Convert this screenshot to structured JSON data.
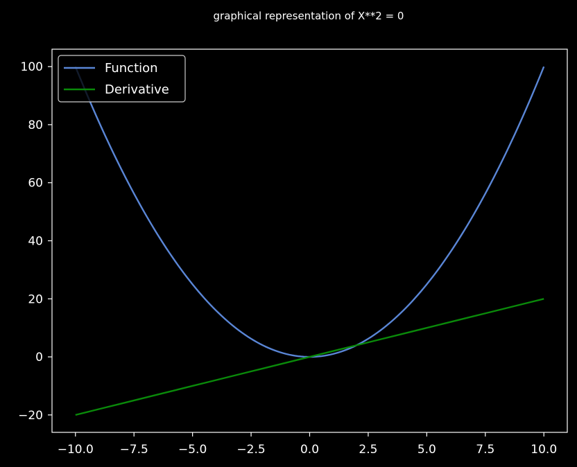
{
  "chart_data": {
    "type": "line",
    "title": "graphical representation of X**2 = 0",
    "xlabel": "",
    "ylabel": "",
    "xlim": [
      -11,
      11
    ],
    "ylim": [
      -26,
      106
    ],
    "x_ticks": [
      -10.0,
      -7.5,
      -5.0,
      -2.5,
      0.0,
      2.5,
      5.0,
      7.5,
      10.0
    ],
    "x_tick_labels": [
      "−10.0",
      "−7.5",
      "−5.0",
      "−2.5",
      "0.0",
      "2.5",
      "5.0",
      "7.5",
      "10.0"
    ],
    "y_ticks": [
      -20,
      0,
      20,
      40,
      60,
      80,
      100
    ],
    "y_tick_labels": [
      "−20",
      "0",
      "20",
      "40",
      "60",
      "80",
      "100"
    ],
    "grid": false,
    "legend_position": "top-left",
    "series": [
      {
        "name": "Function",
        "color": "#5a86d6",
        "x": [
          -10,
          -9,
          -8,
          -7,
          -6,
          -5,
          -4,
          -3,
          -2,
          -1,
          0,
          1,
          2,
          3,
          4,
          5,
          6,
          7,
          8,
          9,
          10
        ],
        "y": [
          100,
          81,
          64,
          49,
          36,
          25,
          16,
          9,
          4,
          1,
          0,
          1,
          4,
          9,
          16,
          25,
          36,
          49,
          64,
          81,
          100
        ]
      },
      {
        "name": "Derivative",
        "color": "#0a8a0a",
        "x": [
          -10,
          -5,
          0,
          5,
          10
        ],
        "y": [
          -20,
          -10,
          0,
          10,
          20
        ]
      }
    ]
  }
}
